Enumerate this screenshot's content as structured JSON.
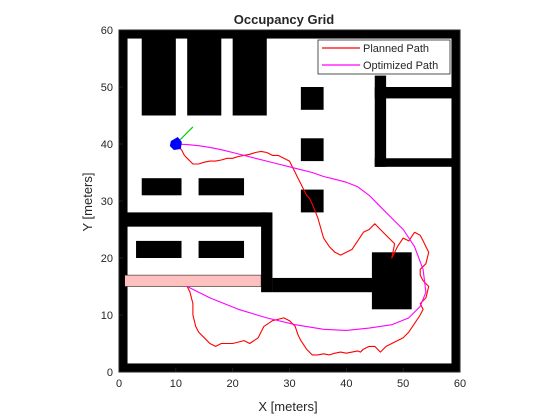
{
  "chart_data": {
    "type": "line",
    "title": "Occupancy Grid",
    "xlabel": "X [meters]",
    "ylabel": "Y [meters]",
    "xlim": [
      0,
      60
    ],
    "ylim": [
      0,
      60
    ],
    "xticks": [
      0,
      10,
      20,
      30,
      40,
      50,
      60
    ],
    "yticks": [
      0,
      10,
      20,
      30,
      40,
      50,
      60
    ],
    "grid": false,
    "legend_position": "top-right",
    "occupied_cells": [
      {
        "x0": 0,
        "x1": 60,
        "y0": 0,
        "y1": 1.5
      },
      {
        "x0": 0,
        "x1": 60,
        "y0": 58.5,
        "y1": 60
      },
      {
        "x0": 0,
        "x1": 1.5,
        "y0": 0,
        "y1": 60
      },
      {
        "x0": 58.5,
        "x1": 60,
        "y0": 0,
        "y1": 60
      },
      {
        "x0": 4,
        "x1": 10,
        "y0": 45,
        "y1": 59
      },
      {
        "x0": 12,
        "x1": 18,
        "y0": 45,
        "y1": 59
      },
      {
        "x0": 20,
        "x1": 26,
        "y0": 45,
        "y1": 59
      },
      {
        "x0": 32,
        "x1": 36,
        "y0": 46,
        "y1": 50
      },
      {
        "x0": 32,
        "x1": 36,
        "y0": 37,
        "y1": 41
      },
      {
        "x0": 32,
        "x1": 36,
        "y0": 28,
        "y1": 32
      },
      {
        "x0": 4,
        "x1": 11,
        "y0": 31,
        "y1": 34
      },
      {
        "x0": 14,
        "x1": 22,
        "y0": 31,
        "y1": 34
      },
      {
        "x0": 45,
        "x1": 47,
        "y0": 36,
        "y1": 52
      },
      {
        "x0": 45,
        "x1": 59,
        "y0": 48,
        "y1": 50
      },
      {
        "x0": 45,
        "x1": 59,
        "y0": 36,
        "y1": 37.5
      },
      {
        "x0": 1,
        "x1": 26,
        "y0": 25.5,
        "y1": 28
      },
      {
        "x0": 25,
        "x1": 27,
        "y0": 14,
        "y1": 28
      },
      {
        "x0": 27,
        "x1": 47,
        "y0": 14,
        "y1": 16.5
      },
      {
        "x0": 44.5,
        "x1": 51.5,
        "y0": 11,
        "y1": 21
      },
      {
        "x0": 3,
        "x1": 11,
        "y0": 20,
        "y1": 23
      },
      {
        "x0": 14,
        "x1": 22,
        "y0": 20,
        "y1": 23
      }
    ],
    "inflated_cells": [
      {
        "x0": 1,
        "x1": 25,
        "y0": 15,
        "y1": 17
      }
    ],
    "series": [
      {
        "name": "Planned Path",
        "color": "#ff0000",
        "x": [
          12,
          12.5,
          13,
          13,
          13.5,
          14,
          15,
          16,
          17,
          18,
          20,
          22,
          23,
          24.5,
          25.5,
          27,
          29,
          30,
          31,
          31.5,
          32,
          33,
          34,
          35,
          36,
          37,
          38,
          39,
          40,
          41,
          42,
          42.5,
          43,
          44,
          45,
          46,
          47,
          48,
          49,
          50,
          51,
          52,
          53,
          53.5,
          53,
          54,
          54.5,
          53.5,
          53,
          53,
          54,
          54.5,
          54,
          53.5,
          53,
          52,
          51,
          50,
          49,
          48,
          48.5,
          47,
          46,
          45,
          44,
          43,
          42,
          41,
          40,
          39,
          38,
          37,
          36,
          35,
          34,
          33.5,
          33,
          32.5,
          32,
          31.5,
          31,
          30.5,
          30,
          29,
          28,
          27,
          26,
          25,
          24,
          23,
          22,
          21,
          20,
          19,
          18,
          17,
          16,
          15,
          14,
          13,
          12.5,
          12,
          11.5,
          11,
          10.5,
          10
        ],
        "y": [
          15,
          14,
          12,
          10,
          8,
          7,
          6,
          5,
          4.5,
          5,
          5,
          5.5,
          5,
          6,
          8,
          9,
          9.5,
          9,
          8,
          6.5,
          5.5,
          4,
          3,
          3,
          3.2,
          3,
          3.3,
          3.5,
          3.3,
          3.5,
          3.7,
          3.5,
          4,
          4.5,
          4.5,
          3.5,
          4.5,
          5,
          5.5,
          6,
          7,
          8.5,
          10,
          11,
          12,
          13,
          15,
          16,
          17,
          18,
          19,
          21,
          22,
          23,
          24,
          24.5,
          23,
          23.5,
          22,
          20,
          22.5,
          24,
          25,
          26,
          25,
          24.5,
          23,
          21.5,
          21,
          20.5,
          21,
          22,
          23.5,
          27,
          29.5,
          30.5,
          31,
          32,
          33,
          34,
          35,
          36,
          37,
          37.5,
          38,
          38,
          38.5,
          38.7,
          38.5,
          38.2,
          38,
          37.8,
          37.5,
          37.5,
          37.2,
          37,
          37,
          36.8,
          36.5,
          36.5,
          37,
          37.5,
          38,
          39,
          39.5,
          40
        ]
      },
      {
        "name": "Optimized Path",
        "color": "#ff00ff",
        "x": [
          12,
          16,
          21,
          26,
          31,
          36,
          40,
          44,
          48,
          51,
          53,
          54,
          53.5,
          52,
          50,
          48,
          46,
          44,
          42,
          40,
          38,
          36,
          34,
          32,
          30,
          28,
          26,
          24,
          22,
          20,
          18,
          16,
          14,
          12,
          10
        ],
        "y": [
          15,
          13,
          11,
          9.5,
          8.3,
          7.5,
          7.3,
          7.7,
          8.3,
          9.5,
          11.5,
          14,
          18,
          22,
          25,
          27,
          29,
          31,
          32.5,
          33.3,
          33.8,
          34.3,
          35,
          35.5,
          36,
          36.5,
          37,
          37.5,
          38,
          38.5,
          39,
          39.4,
          39.7,
          39.9,
          40
        ]
      }
    ],
    "robot": {
      "x": 10,
      "y": 40,
      "color": "#0000ff"
    },
    "heading_segment": {
      "x": [
        10,
        13
      ],
      "y": [
        40,
        43
      ],
      "color": "#00cc00"
    }
  }
}
